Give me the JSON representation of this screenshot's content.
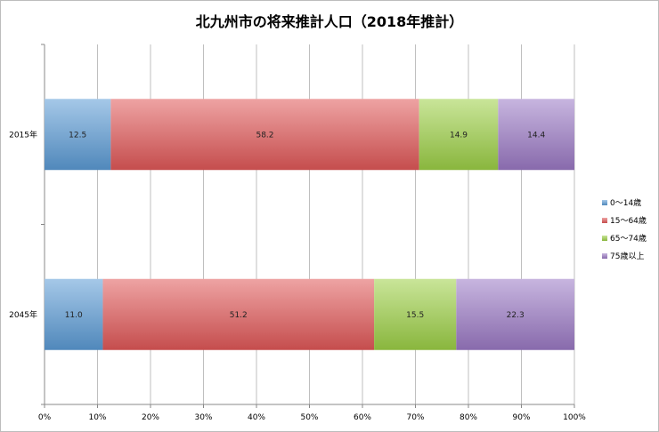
{
  "chart_data": {
    "type": "bar",
    "orientation": "horizontal",
    "stacked": "percent",
    "title": "北九州市の将来推計人口（2018年推計）",
    "xlabel": "",
    "ylabel": "",
    "xlim": [
      0,
      100
    ],
    "x_ticks": [
      "0%",
      "10%",
      "20%",
      "30%",
      "40%",
      "50%",
      "60%",
      "70%",
      "80%",
      "90%",
      "100%"
    ],
    "categories": [
      "2015年",
      "2045年"
    ],
    "series": [
      {
        "name": "0〜14歳",
        "color": "#5b9bd5",
        "values": [
          12.5,
          11.0
        ],
        "labels": [
          "12.5",
          "11.0"
        ]
      },
      {
        "name": "15〜64歳",
        "color": "#e05757",
        "values": [
          58.2,
          51.2
        ],
        "labels": [
          "58.2",
          "51.2"
        ]
      },
      {
        "name": "65〜74歳",
        "color": "#9ccf45",
        "values": [
          14.9,
          15.5
        ],
        "labels": [
          "14.9",
          "15.5"
        ]
      },
      {
        "name": "75歳以上",
        "color": "#9a78c4",
        "values": [
          14.4,
          22.3
        ],
        "labels": [
          "14.4",
          "22.3"
        ]
      }
    ],
    "grid": true,
    "legend": "right"
  }
}
